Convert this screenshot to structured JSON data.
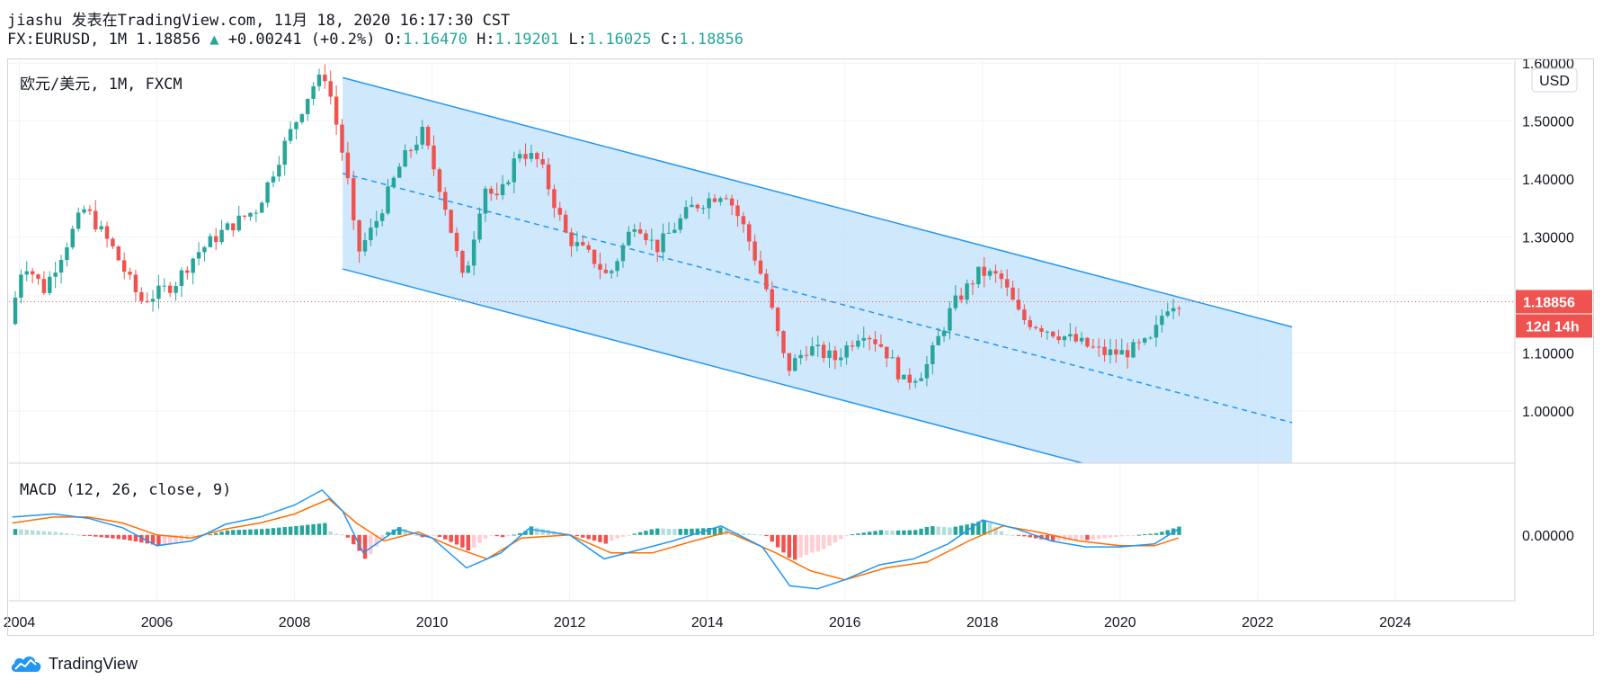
{
  "header": {
    "line1": "jiashu 发表在TradingView.com, 11月 18, 2020 16:17:30 CST",
    "symbol": "FX:EURUSD, 1M 1.18856",
    "change_arrow": "▲",
    "change": "+0.00241 (+0.2%)",
    "o_label": "O:",
    "o_value": "1.16470",
    "h_label": "H:",
    "h_value": "1.19201",
    "l_label": "L:",
    "l_value": "1.16025",
    "c_label": "C:",
    "c_value": "1.18856"
  },
  "chart_data": {
    "type": "candlestick",
    "title": "欧元/美元, 1M, FXCM",
    "currency_label": "USD",
    "price_ticks": [
      "1.60000",
      "1.50000",
      "1.40000",
      "1.30000",
      "1.20000",
      "1.10000",
      "1.00000"
    ],
    "price_range": [
      0.91,
      1.605
    ],
    "time_range": [
      2003.85,
      2025.7
    ],
    "x_ticks": [
      "2004",
      "2006",
      "2008",
      "2010",
      "2012",
      "2014",
      "2016",
      "2018",
      "2020",
      "2022",
      "2024"
    ],
    "last_price_label": "1.18856",
    "countdown_label": "12d 14h",
    "colors": {
      "up": "#26a69a",
      "down": "#ef5350",
      "channel": "#2196f3",
      "channel_fill": "#bbdefb",
      "macd": "#2196f3",
      "signal": "#ff6d00"
    },
    "price_anchors": [
      [
        2003.9,
        1.15
      ],
      [
        2004.1,
        1.26
      ],
      [
        2004.4,
        1.21
      ],
      [
        2004.9,
        1.33
      ],
      [
        2005.0,
        1.35
      ],
      [
        2005.4,
        1.28
      ],
      [
        2005.8,
        1.19
      ],
      [
        2006.0,
        1.2
      ],
      [
        2006.3,
        1.22
      ],
      [
        2006.6,
        1.27
      ],
      [
        2007.0,
        1.31
      ],
      [
        2007.5,
        1.35
      ],
      [
        2007.9,
        1.46
      ],
      [
        2008.3,
        1.56
      ],
      [
        2008.5,
        1.58
      ],
      [
        2008.8,
        1.41
      ],
      [
        2008.95,
        1.27
      ],
      [
        2009.2,
        1.32
      ],
      [
        2009.6,
        1.43
      ],
      [
        2009.9,
        1.48
      ],
      [
        2010.2,
        1.37
      ],
      [
        2010.5,
        1.22
      ],
      [
        2010.8,
        1.39
      ],
      [
        2011.0,
        1.36
      ],
      [
        2011.3,
        1.45
      ],
      [
        2011.6,
        1.43
      ],
      [
        2012.0,
        1.3
      ],
      [
        2012.4,
        1.26
      ],
      [
        2012.6,
        1.23
      ],
      [
        2013.0,
        1.33
      ],
      [
        2013.3,
        1.28
      ],
      [
        2013.8,
        1.35
      ],
      [
        2014.3,
        1.38
      ],
      [
        2014.6,
        1.31
      ],
      [
        2014.9,
        1.21
      ],
      [
        2015.2,
        1.07
      ],
      [
        2015.5,
        1.11
      ],
      [
        2015.9,
        1.09
      ],
      [
        2016.3,
        1.14
      ],
      [
        2016.6,
        1.11
      ],
      [
        2016.9,
        1.05
      ],
      [
        2017.2,
        1.07
      ],
      [
        2017.6,
        1.18
      ],
      [
        2018.0,
        1.24
      ],
      [
        2018.3,
        1.23
      ],
      [
        2018.6,
        1.16
      ],
      [
        2019.0,
        1.14
      ],
      [
        2019.4,
        1.12
      ],
      [
        2019.8,
        1.1
      ],
      [
        2020.1,
        1.1
      ],
      [
        2020.5,
        1.12
      ],
      [
        2020.7,
        1.18
      ],
      [
        2020.85,
        1.18856
      ]
    ],
    "channel": {
      "upper": [
        [
          2008.7,
          1.575
        ],
        [
          2022.5,
          1.145
        ]
      ],
      "lower": [
        [
          2008.7,
          1.245
        ],
        [
          2022.5,
          0.815
        ]
      ],
      "mid": [
        [
          2008.7,
          1.41
        ],
        [
          2022.5,
          0.98
        ]
      ],
      "fill_right": 2022.5
    },
    "macd_indicator": {
      "label": "MACD (12, 26, close, 9)",
      "zero_label": "0.00000",
      "macd_anchors": [
        [
          2003.9,
          0.03
        ],
        [
          2004.5,
          0.035
        ],
        [
          2005.0,
          0.028
        ],
        [
          2005.5,
          0.012
        ],
        [
          2006.0,
          -0.018
        ],
        [
          2006.5,
          -0.01
        ],
        [
          2007.0,
          0.018
        ],
        [
          2007.5,
          0.03
        ],
        [
          2008.0,
          0.05
        ],
        [
          2008.4,
          0.075
        ],
        [
          2008.7,
          0.04
        ],
        [
          2009.0,
          -0.03
        ],
        [
          2009.5,
          0.01
        ],
        [
          2010.0,
          -0.005
        ],
        [
          2010.5,
          -0.055
        ],
        [
          2011.0,
          -0.03
        ],
        [
          2011.4,
          0.01
        ],
        [
          2012.0,
          0.0
        ],
        [
          2012.5,
          -0.04
        ],
        [
          2013.0,
          -0.025
        ],
        [
          2013.5,
          -0.01
        ],
        [
          2014.2,
          0.015
        ],
        [
          2014.8,
          -0.02
        ],
        [
          2015.2,
          -0.085
        ],
        [
          2015.6,
          -0.09
        ],
        [
          2016.0,
          -0.075
        ],
        [
          2016.5,
          -0.05
        ],
        [
          2017.0,
          -0.04
        ],
        [
          2017.5,
          -0.015
        ],
        [
          2018.0,
          0.025
        ],
        [
          2018.5,
          0.01
        ],
        [
          2019.0,
          -0.01
        ],
        [
          2019.5,
          -0.02
        ],
        [
          2020.0,
          -0.02
        ],
        [
          2020.5,
          -0.015
        ],
        [
          2020.85,
          0.01
        ]
      ],
      "signal_anchors": [
        [
          2003.9,
          0.02
        ],
        [
          2004.5,
          0.03
        ],
        [
          2005.0,
          0.03
        ],
        [
          2005.5,
          0.02
        ],
        [
          2006.0,
          0.0
        ],
        [
          2006.5,
          -0.005
        ],
        [
          2007.0,
          0.01
        ],
        [
          2007.5,
          0.02
        ],
        [
          2008.0,
          0.035
        ],
        [
          2008.5,
          0.06
        ],
        [
          2008.9,
          0.02
        ],
        [
          2009.3,
          -0.01
        ],
        [
          2009.8,
          0.005
        ],
        [
          2010.3,
          -0.02
        ],
        [
          2010.8,
          -0.04
        ],
        [
          2011.3,
          -0.005
        ],
        [
          2012.0,
          0.0
        ],
        [
          2012.6,
          -0.03
        ],
        [
          2013.2,
          -0.03
        ],
        [
          2013.8,
          -0.01
        ],
        [
          2014.3,
          0.005
        ],
        [
          2015.0,
          -0.03
        ],
        [
          2015.5,
          -0.06
        ],
        [
          2016.0,
          -0.075
        ],
        [
          2016.6,
          -0.055
        ],
        [
          2017.2,
          -0.045
        ],
        [
          2017.8,
          -0.01
        ],
        [
          2018.3,
          0.015
        ],
        [
          2018.8,
          0.005
        ],
        [
          2019.4,
          -0.01
        ],
        [
          2020.0,
          -0.018
        ],
        [
          2020.5,
          -0.018
        ],
        [
          2020.85,
          -0.005
        ]
      ],
      "range": [
        -0.11,
        0.12
      ]
    }
  },
  "footer": {
    "brand": "TradingView",
    "logo_icon": "tradingview-cloud-icon"
  }
}
